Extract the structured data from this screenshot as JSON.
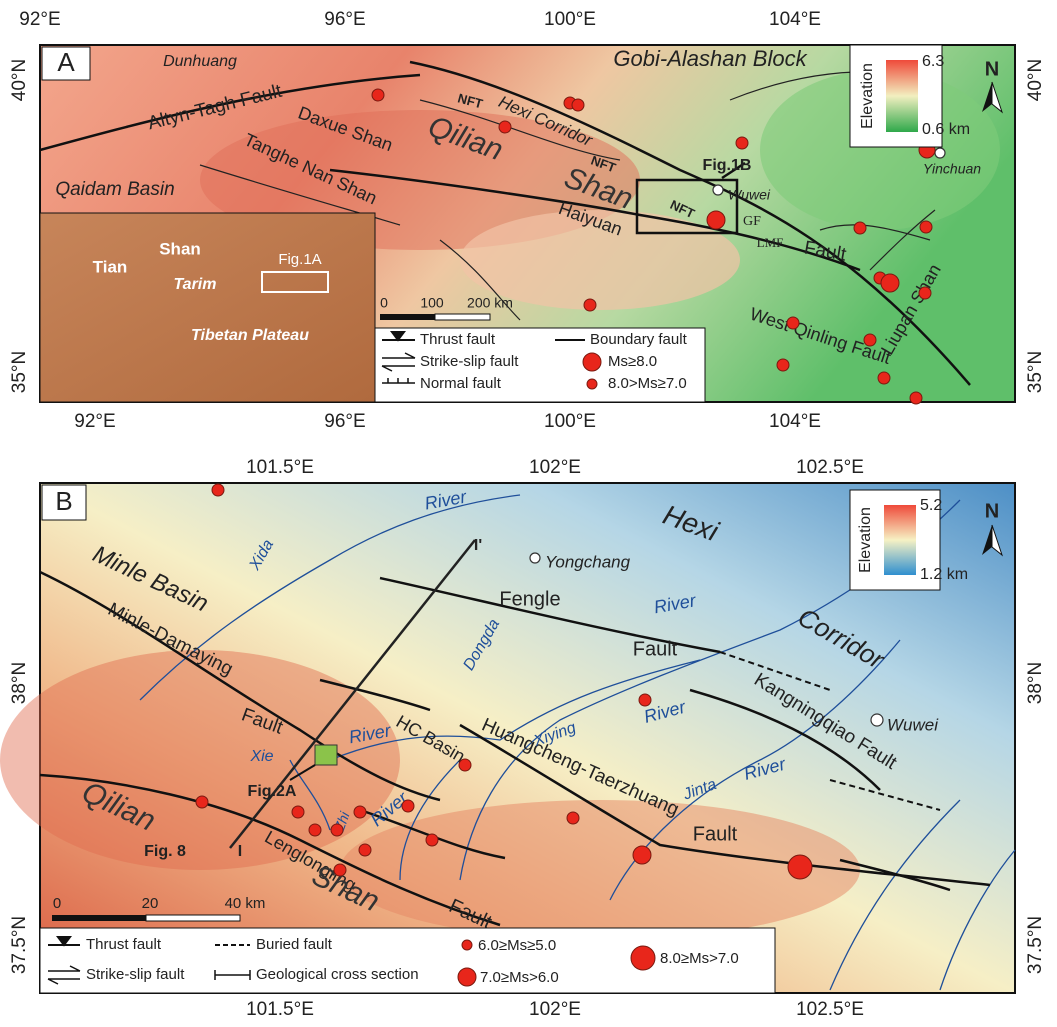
{
  "panel_a": {
    "label": "A",
    "lon_top": [
      "92°E",
      "96°E",
      "100°E",
      "104°E"
    ],
    "lon_bottom": [
      "92°E",
      "96°E",
      "100°E",
      "104°E"
    ],
    "lat_left": [
      "40°N",
      "35°N"
    ],
    "lat_right": [
      "40°N",
      "35°N"
    ],
    "places": [
      "Dunhuang",
      "Gobi-Alashan Block",
      "Altyn-Tagh Fault",
      "Daxue Shan",
      "Qilian",
      "Hexi Corridor",
      "NFT",
      "NFT",
      "NFT",
      "Tanghe Nan Shan",
      "Qaidam Basin",
      "Shan",
      "Wuwei",
      "Haiyuan",
      "GF",
      "LMF",
      "Fault",
      "Liupan Shan",
      "West Qinling Fault",
      "Yinchuan"
    ],
    "callout": "Fig.1B",
    "elevation": {
      "title": "Elevation",
      "max": 6.3,
      "min": "0.6 km"
    },
    "north": "N",
    "inset": {
      "labels": [
        "Tian",
        "Shan",
        "Tarim",
        "Tibetan Plateau"
      ],
      "box": "Fig.1A"
    },
    "scale": [
      0,
      100,
      "200 km"
    ],
    "legend": [
      "Thrust fault",
      "Boundary fault",
      "Strike-slip fault",
      "Ms≥8.0",
      "Normal fault",
      "8.0>Ms≥7.0"
    ]
  },
  "panel_b": {
    "label": "B",
    "lon_top": [
      "101.5°E",
      "102°E",
      "102.5°E"
    ],
    "lon_bottom": [
      "101.5°E",
      "102°E",
      "102.5°E"
    ],
    "lat_left": [
      "38°N",
      "37.5°N"
    ],
    "lat_right": [
      "38°N",
      "37.5°N"
    ],
    "places": [
      "River",
      "Xida",
      "Hexi",
      "Yongchang",
      "Minle Basin",
      "Minle-Damaying",
      "Fault",
      "Fengle",
      "Fault",
      "River",
      "Corridor",
      "Dongda",
      "Kangningqiao Fault",
      "Wuwei",
      "Xie",
      "River",
      "HC Basin",
      "Huangcheng-Taerzhuang",
      "Xiying",
      "River",
      "Jinta",
      "River",
      "Zhi",
      "River",
      "Fault",
      "Qilian",
      "Lenglongling",
      "Shan",
      "Fault"
    ],
    "callout": "Fig.2A",
    "section": {
      "label": "Fig. 8",
      "start": "I",
      "end": "I'"
    },
    "elevation": {
      "title": "Elevation",
      "max": 5.2,
      "min": "1.2 km"
    },
    "north": "N",
    "scale": [
      0,
      20,
      "40 km"
    ],
    "legend": [
      "Thrust fault",
      "Buried fault",
      "6.0≥Ms≥5.0",
      "8.0≥Ms>7.0",
      "Strike-slip fault",
      "Geological cross section",
      "7.0≥Ms>6.0"
    ]
  }
}
